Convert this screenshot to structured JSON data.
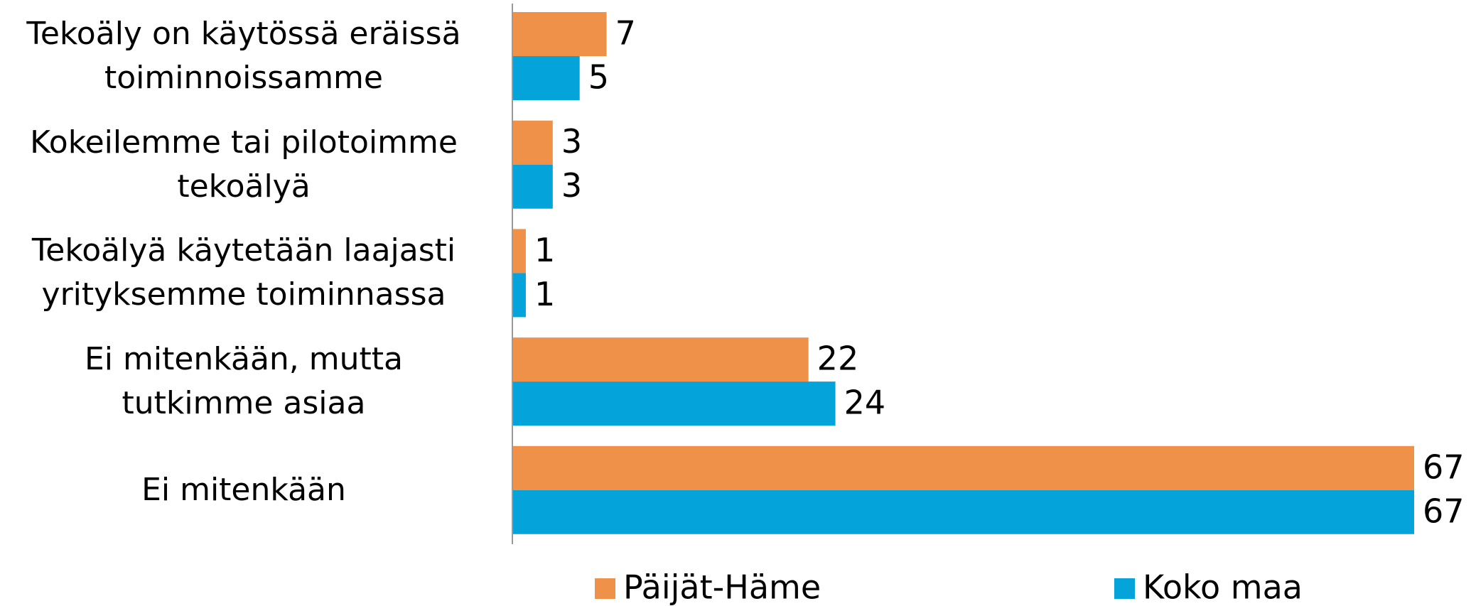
{
  "chart_data": {
    "type": "bar",
    "orientation": "horizontal",
    "categories": [
      "Tekoäly on käytössä eräissä\ntoiminnoissamme",
      "Kokeilemme tai pilotoimme\ntekoälyä",
      "Tekoälyä käytetään laajasti\nyrityksemme toiminnassa",
      "Ei mitenkään, mutta\ntutkimme asiaa",
      "Ei mitenkään"
    ],
    "series": [
      {
        "name": "Päijät-Häme",
        "color": "#f0914a",
        "values": [
          7,
          3,
          1,
          22,
          67
        ]
      },
      {
        "name": "Koko maa",
        "color": "#04a4da",
        "values": [
          5,
          3,
          1,
          24,
          67
        ]
      }
    ]
  }
}
